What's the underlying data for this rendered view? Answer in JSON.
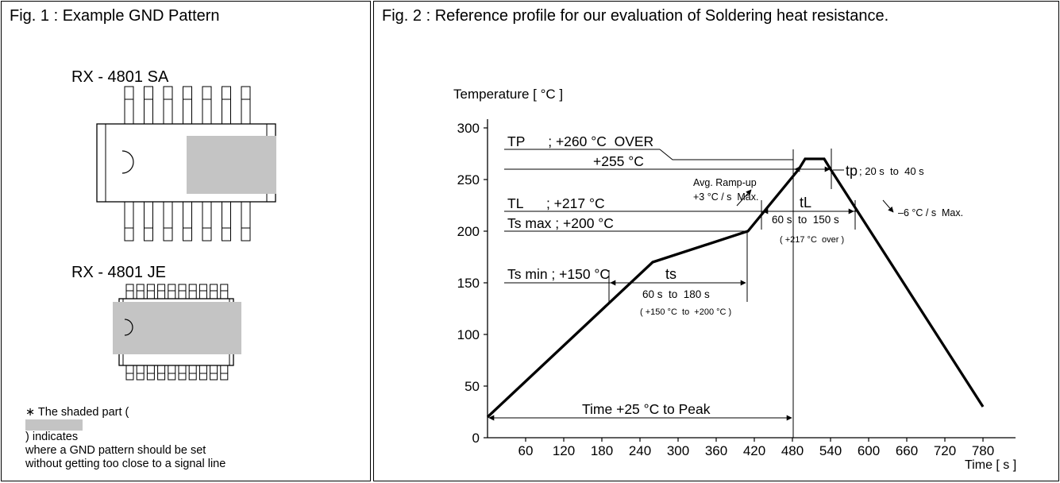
{
  "colors": {
    "shade": "#c4c4c4",
    "line": "#000000",
    "background": "#ffffff"
  },
  "fig1": {
    "title": "Fig. 1 : Example GND Pattern",
    "parts": [
      {
        "label": "RX - 4801 SA"
      },
      {
        "label": "RX - 4801 JE"
      }
    ],
    "note": {
      "line1_prefix": "∗ The shaded part (",
      "line1_suffix": ") indicates",
      "line2": "where a GND pattern should be set",
      "line3": "without getting too close to a signal line"
    }
  },
  "fig2": {
    "title": "Fig. 2 : Reference profile for our evaluation of Soldering heat resistance.",
    "ylabel": "Temperature [ °C ]",
    "xlabel": "Time [ s ]",
    "y_ticks": [
      "300",
      "250",
      "200",
      "150",
      "100",
      "50",
      "0"
    ],
    "x_ticks": [
      "60",
      "120",
      "180",
      "240",
      "300",
      "360",
      "420",
      "480",
      "540",
      "600",
      "660",
      "720",
      "780"
    ],
    "annotations": {
      "tp_row": "TP      ; +260 °C  OVER",
      "t255_row": "+255 °C",
      "tl_row": "TL      ; +217 °C",
      "tsmax_row": "Ts max ; +200 °C",
      "tsmin_row": "Ts min ; +150 °C",
      "ts_label": "ts",
      "ts_range": "60 s  to  180 s",
      "ts_note": "( +150 °C  to  +200 °C )",
      "tl_label": "tL",
      "tl_range": "60 s  to  150 s",
      "tl_note": "( +217 °C  over )",
      "tp_label": "tp",
      "tp_range": "; 20 s  to  40 s",
      "ramp_up_1": "Avg. Ramp-up",
      "ramp_up_2": "+3 °C / s  Max.",
      "ramp_down": "–6 °C / s  Max.",
      "time_to_peak": "Time +25 °C to Peak"
    }
  },
  "chart_data": {
    "type": "line",
    "title": "Fig. 2 : Reference profile for our evaluation of Soldering heat resistance.",
    "xlabel": "Time [ s ]",
    "ylabel": "Temperature [ °C ]",
    "xlim": [
      0,
      810
    ],
    "ylim": [
      0,
      320
    ],
    "x_ticks": [
      60,
      120,
      180,
      240,
      300,
      360,
      420,
      480,
      540,
      600,
      660,
      720,
      780
    ],
    "y_ticks": [
      0,
      50,
      100,
      150,
      200,
      250,
      300
    ],
    "grid": false,
    "series": [
      {
        "x": [
          0,
          260,
          410,
          490,
          500,
          530,
          540,
          780
        ],
        "y": [
          20,
          170,
          200,
          260,
          270,
          270,
          260,
          30
        ]
      }
    ]
  }
}
